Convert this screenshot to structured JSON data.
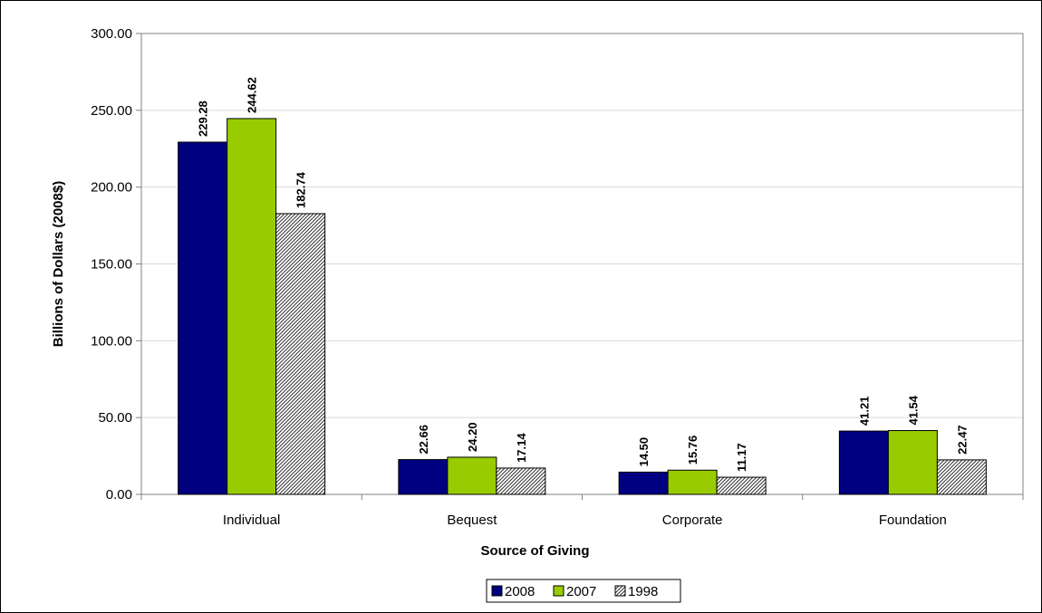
{
  "chart_data": {
    "type": "bar",
    "title": "",
    "xlabel": "Source of Giving",
    "ylabel": "Billions of Dollars (2008$)",
    "ylim": [
      0,
      300
    ],
    "yticks": [
      "0.00",
      "50.00",
      "100.00",
      "150.00",
      "200.00",
      "250.00",
      "300.00"
    ],
    "categories": [
      "Individual",
      "Bequest",
      "Corporate",
      "Foundation"
    ],
    "series": [
      {
        "name": "2008",
        "values": [
          229.28,
          22.66,
          14.5,
          41.21
        ],
        "labels": [
          "229.28",
          "22.66",
          "14.50",
          "41.21"
        ],
        "color": "#000080",
        "pattern": "solid"
      },
      {
        "name": "2007",
        "values": [
          244.62,
          24.2,
          15.76,
          41.54
        ],
        "labels": [
          "244.62",
          "24.20",
          "15.76",
          "41.54"
        ],
        "color": "#99CC00",
        "pattern": "solid"
      },
      {
        "name": "1998",
        "values": [
          182.74,
          17.14,
          11.17,
          22.47
        ],
        "labels": [
          "182.74",
          "17.14",
          "11.17",
          "22.47"
        ],
        "color": "#C0C0C0",
        "pattern": "diagonal-hatch"
      }
    ],
    "grid": true,
    "legend_position": "bottom"
  }
}
